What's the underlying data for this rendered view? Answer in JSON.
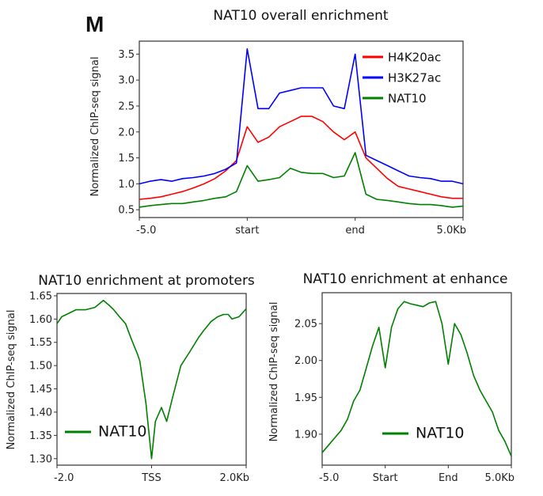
{
  "panel_label": "M",
  "chart_data": [
    {
      "type": "line",
      "title": "NAT10 overall enrichment",
      "xlabel": "",
      "ylabel": "Normalized ChIP-seq signal",
      "x_ticks": [
        "-5.0",
        "start",
        "end",
        "5.0Kb"
      ],
      "y_ticks": [
        0.5,
        1.0,
        1.5,
        2.0,
        2.5,
        3.0,
        3.5
      ],
      "ylim": [
        0.35,
        3.75
      ],
      "grid": false,
      "legend": "top-right",
      "series": [
        {
          "name": "H4K20ac",
          "color": "#ff0000",
          "values": [
            0.7,
            0.72,
            0.75,
            0.8,
            0.85,
            0.92,
            1.0,
            1.1,
            1.25,
            1.45,
            2.1,
            1.8,
            1.9,
            2.1,
            2.2,
            2.3,
            2.3,
            2.2,
            2.0,
            1.85,
            2.0,
            1.5,
            1.3,
            1.1,
            0.95,
            0.9,
            0.85,
            0.8,
            0.75,
            0.72,
            0.72
          ]
        },
        {
          "name": "H3K27ac",
          "color": "#0000ff",
          "values": [
            1.0,
            1.05,
            1.08,
            1.05,
            1.1,
            1.12,
            1.15,
            1.2,
            1.28,
            1.4,
            3.6,
            2.45,
            2.45,
            2.75,
            2.8,
            2.85,
            2.85,
            2.85,
            2.5,
            2.45,
            3.5,
            1.55,
            1.45,
            1.35,
            1.25,
            1.15,
            1.12,
            1.1,
            1.05,
            1.05,
            1.0
          ]
        },
        {
          "name": "NAT10",
          "color": "#008000",
          "values": [
            0.55,
            0.58,
            0.6,
            0.62,
            0.62,
            0.65,
            0.68,
            0.72,
            0.75,
            0.85,
            1.35,
            1.05,
            1.08,
            1.12,
            1.3,
            1.22,
            1.2,
            1.2,
            1.12,
            1.15,
            1.6,
            0.8,
            0.7,
            0.68,
            0.65,
            0.62,
            0.6,
            0.6,
            0.58,
            0.55,
            0.57
          ]
        }
      ]
    },
    {
      "type": "line",
      "title": "NAT10 enrichment at promoters",
      "xlabel": "",
      "ylabel": "Normalized ChIP-seq signal",
      "x_ticks": [
        "-2.0",
        "TSS",
        "2.0Kb"
      ],
      "xlim": [
        -2.0,
        2.0
      ],
      "y_ticks": [
        1.3,
        1.35,
        1.4,
        1.45,
        1.5,
        1.55,
        1.6,
        1.65
      ],
      "ylim": [
        1.286,
        1.655
      ],
      "grid": false,
      "legend": "lower-left",
      "series": [
        {
          "name": "NAT10",
          "color": "#008000",
          "x": [
            -2.0,
            -1.9,
            -1.8,
            -1.6,
            -1.4,
            -1.2,
            -1.02,
            -0.9,
            -0.8,
            -0.68,
            -0.55,
            -0.42,
            -0.3,
            -0.25,
            -0.12,
            -0.05,
            0.0,
            0.08,
            0.21,
            0.32,
            0.44,
            0.62,
            0.81,
            0.99,
            1.1,
            1.26,
            1.4,
            1.52,
            1.62,
            1.7,
            1.85,
            2.0
          ],
          "y": [
            1.59,
            1.605,
            1.61,
            1.62,
            1.62,
            1.625,
            1.64,
            1.63,
            1.62,
            1.605,
            1.59,
            1.555,
            1.525,
            1.51,
            1.42,
            1.35,
            1.3,
            1.38,
            1.41,
            1.38,
            1.43,
            1.5,
            1.53,
            1.56,
            1.575,
            1.595,
            1.605,
            1.61,
            1.61,
            1.6,
            1.605,
            1.622
          ]
        }
      ]
    },
    {
      "type": "line",
      "title": "NAT10 enrichment at enhance",
      "xlabel": "",
      "ylabel": "Normalized ChIP-seq signal",
      "x_ticks": [
        "-5.0",
        "Start",
        "End",
        "5.0Kb"
      ],
      "y_ticks": [
        1.9,
        1.95,
        2.0,
        2.05
      ],
      "ylim": [
        1.858,
        2.092
      ],
      "grid": false,
      "legend": "lower-center",
      "series": [
        {
          "name": "NAT10",
          "color": "#008000",
          "values": [
            1.875,
            1.885,
            1.895,
            1.905,
            1.92,
            1.945,
            1.96,
            1.99,
            2.02,
            2.045,
            1.99,
            2.045,
            2.07,
            2.08,
            2.077,
            2.075,
            2.073,
            2.078,
            2.08,
            2.05,
            1.995,
            2.05,
            2.035,
            2.01,
            1.98,
            1.96,
            1.945,
            1.93,
            1.905,
            1.89,
            1.87
          ]
        }
      ]
    }
  ]
}
